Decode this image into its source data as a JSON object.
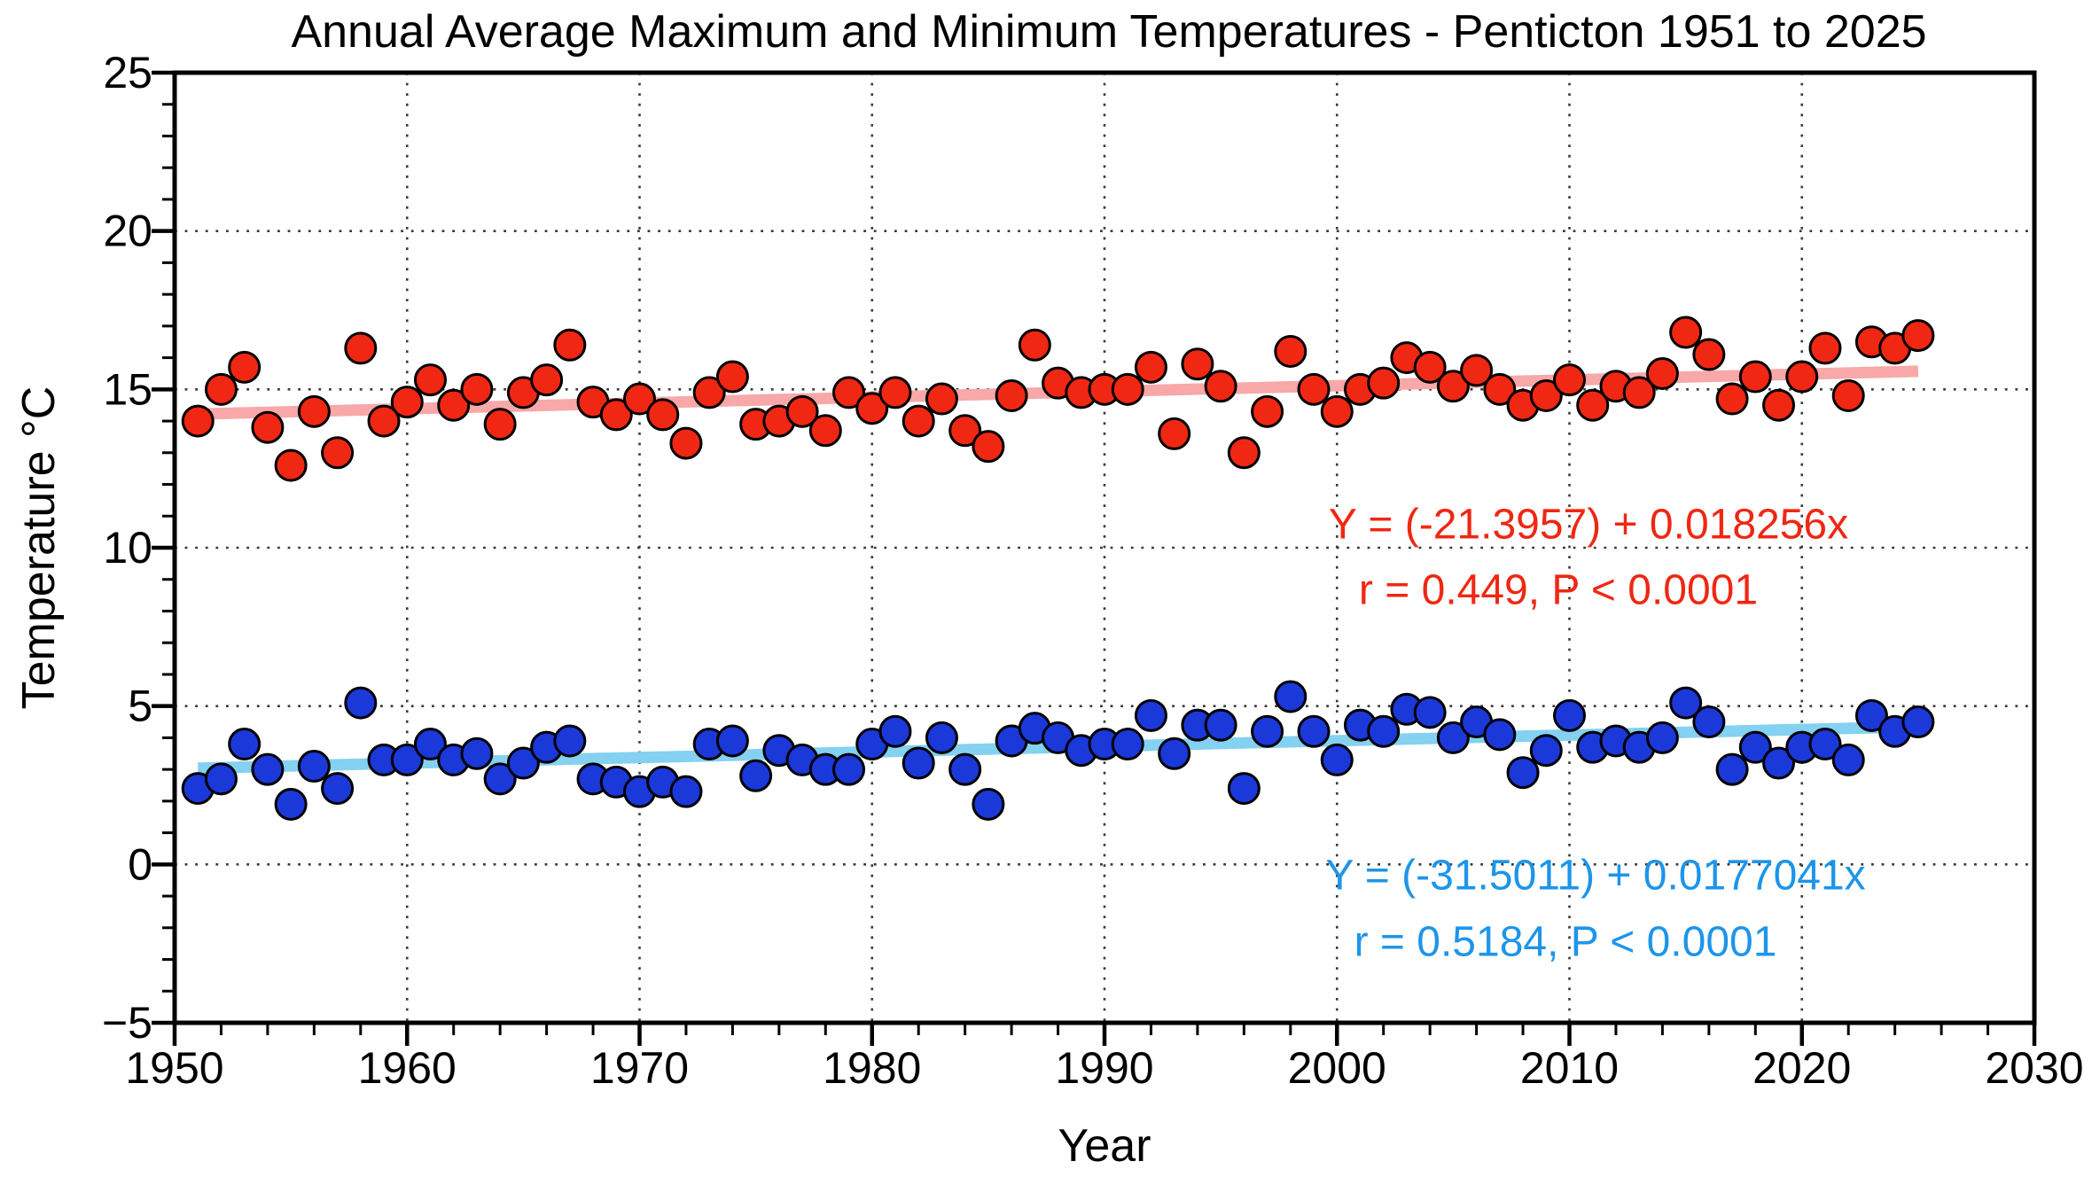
{
  "chart_data": {
    "type": "scatter",
    "title": "Annual Average Maximum and Minimum Temperatures - Penticton 1951 to 2025",
    "xlabel": "Year",
    "ylabel": "Temperature °C",
    "xlim": [
      1950,
      2030
    ],
    "ylim": [
      -5,
      25
    ],
    "grid": true,
    "axes": {
      "x_ticks_major": [
        1950,
        1960,
        1970,
        1980,
        1990,
        2000,
        2010,
        2020,
        2030
      ],
      "x_tick_labels": [
        "1950",
        "1960",
        "1970",
        "1980",
        "1990",
        "2000",
        "2010",
        "2020",
        "2030"
      ],
      "x_ticks_minor": [
        1952,
        1954,
        1956,
        1958,
        1962,
        1964,
        1966,
        1968,
        1972,
        1974,
        1976,
        1978,
        1982,
        1984,
        1986,
        1988,
        1992,
        1994,
        1996,
        1998,
        2002,
        2004,
        2006,
        2008,
        2012,
        2014,
        2016,
        2018,
        2022,
        2024,
        2026,
        2028
      ],
      "x_gridlines": [
        1960,
        1970,
        1980,
        1990,
        2000,
        2010,
        2020
      ],
      "y_ticks_major": [
        -5,
        0,
        5,
        10,
        15,
        20,
        25
      ],
      "y_tick_labels": [
        "−5",
        "0",
        "5",
        "10",
        "15",
        "20",
        "25"
      ],
      "y_ticks_minor": [
        -4,
        -3,
        -2,
        -1,
        1,
        2,
        3,
        4,
        6,
        7,
        8,
        9,
        11,
        12,
        13,
        14,
        16,
        17,
        18,
        19,
        21,
        22,
        23,
        24
      ],
      "y_gridlines": [
        0,
        5,
        10,
        15,
        20
      ]
    },
    "years": [
      1951,
      1952,
      1953,
      1954,
      1955,
      1956,
      1957,
      1958,
      1959,
      1960,
      1961,
      1962,
      1963,
      1964,
      1965,
      1966,
      1967,
      1968,
      1969,
      1970,
      1971,
      1972,
      1973,
      1974,
      1975,
      1976,
      1977,
      1978,
      1979,
      1980,
      1981,
      1982,
      1983,
      1984,
      1985,
      1986,
      1987,
      1988,
      1989,
      1990,
      1991,
      1992,
      1993,
      1994,
      1995,
      1996,
      1997,
      1998,
      1999,
      2000,
      2001,
      2002,
      2003,
      2004,
      2005,
      2006,
      2007,
      2008,
      2009,
      2010,
      2011,
      2012,
      2013,
      2014,
      2015,
      2016,
      2017,
      2018,
      2019,
      2020,
      2021,
      2022,
      2023,
      2024,
      2025
    ],
    "series": [
      {
        "name": "annual-average-maximum",
        "dot_color": "#f02713",
        "trend_color": "#f8a8a8",
        "text_color": "#f02713",
        "equation": "Y = (-21.3957) + 0.018256x",
        "stats": "r = 0.449, P < 0.0001",
        "trend": {
          "intercept": -21.3957,
          "slope": 0.018256,
          "x_start": 1951,
          "x_end": 2025
        },
        "values": [
          14.0,
          15.0,
          15.7,
          13.8,
          12.6,
          14.3,
          13.0,
          16.3,
          14.0,
          14.6,
          15.3,
          14.5,
          15.0,
          13.9,
          14.9,
          15.3,
          16.4,
          14.6,
          14.2,
          14.7,
          14.2,
          13.3,
          14.9,
          15.4,
          13.9,
          14.0,
          14.3,
          13.7,
          14.9,
          14.4,
          14.9,
          14.0,
          14.7,
          13.7,
          13.2,
          14.8,
          16.4,
          15.2,
          14.9,
          15.0,
          15.0,
          15.7,
          13.6,
          15.8,
          15.1,
          13.0,
          14.3,
          16.2,
          15.0,
          14.3,
          15.0,
          15.2,
          16.0,
          15.7,
          15.1,
          15.6,
          15.0,
          14.5,
          14.8,
          15.3,
          14.5,
          15.1,
          14.9,
          15.5,
          16.8,
          16.1,
          14.7,
          15.4,
          14.5,
          15.4,
          16.3,
          14.8,
          16.5,
          16.3,
          16.7
        ]
      },
      {
        "name": "annual-average-minimum",
        "dot_color": "#1b38d8",
        "trend_color": "#84d1f1",
        "text_color": "#1d95ea",
        "equation": "Y = (-31.5011) + 0.0177041x",
        "stats": "r = 0.5184, P < 0.0001",
        "trend": {
          "intercept": -31.5011,
          "slope": 0.0177041,
          "x_start": 1951,
          "x_end": 2025
        },
        "values": [
          2.4,
          2.7,
          3.8,
          3.0,
          1.9,
          3.1,
          2.4,
          5.1,
          3.3,
          3.3,
          3.8,
          3.3,
          3.5,
          2.7,
          3.2,
          3.7,
          3.9,
          2.7,
          2.6,
          2.3,
          2.6,
          2.3,
          3.8,
          3.9,
          2.8,
          3.6,
          3.3,
          3.0,
          3.0,
          3.8,
          4.2,
          3.2,
          4.0,
          3.0,
          1.9,
          3.9,
          4.3,
          4.0,
          3.6,
          3.8,
          3.8,
          4.7,
          3.5,
          4.4,
          4.4,
          2.4,
          4.2,
          5.3,
          4.2,
          3.3,
          4.4,
          4.2,
          4.9,
          4.8,
          4.0,
          4.5,
          4.1,
          2.9,
          3.6,
          4.7,
          3.7,
          3.9,
          3.7,
          4.0,
          5.1,
          4.5,
          3.0,
          3.7,
          3.2,
          3.7,
          3.8,
          3.3,
          4.7,
          4.2,
          4.5
        ]
      }
    ]
  }
}
